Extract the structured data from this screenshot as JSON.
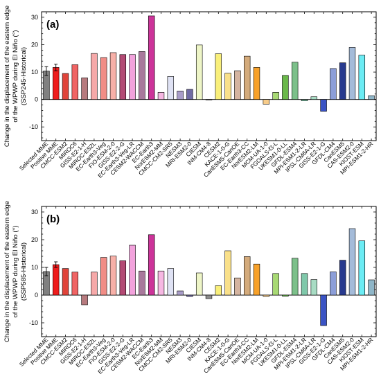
{
  "categories": [
    "Selected MME",
    "Positive MME",
    "CMCC-ESM2",
    "MIROC6",
    "GISS-E2-1-H",
    "MIROC-ES2L",
    "EC-Earth3-Veg",
    "FIO-ESM-2-0",
    "GISS-E2-2-G",
    "EC-Earth3-Veg-LR",
    "CESM2-WACCM",
    "EC-Earth3",
    "NorESM2-MM",
    "CMCC-CM2-SR5",
    "NESM3",
    "MRI-ESM2-0",
    "CIESM",
    "INM-CM4-8",
    "CESM2",
    "KACE-1-0-G",
    "CanESM5-CanOE",
    "EC-Earth3-CC",
    "NorESM2-LM",
    "MCM-UA-1-0",
    "FGOALS-f3-L",
    "UKESM1-0-LL",
    "GFDL-ESM4",
    "MPI-ESM1-2-LR",
    "IPSL-CM6A-LR",
    "GISS-E2-1-G",
    "GFDL-CM4",
    "CanESM5",
    "CAS-ESM2-0",
    "KIOST-ESM",
    "MPI-ESM1-2-HR"
  ],
  "colors": [
    "#808080",
    "#ee1c1c",
    "#e0443a",
    "#f06464",
    "#b77a7e",
    "#f6a9a9",
    "#f18d86",
    "#f7b0a8",
    "#b34a74",
    "#f2a2dc",
    "#a8799c",
    "#cc3399",
    "#f6b7e2",
    "#dfe2f4",
    "#a89cc8",
    "#6f6aa4",
    "#eef5c7",
    "#8c8c8c",
    "#f9ef7a",
    "#f9e08a",
    "#d4b4a0",
    "#d4ab7c",
    "#f7a12a",
    "#f7cc8a",
    "#a8d974",
    "#6ab84a",
    "#7cc08a",
    "#7fc8aa",
    "#a8dcc4",
    "#3a53c4",
    "#8c9ed8",
    "#283a8e",
    "#a4bbd9",
    "#6cecf4",
    "#8fb6c8"
  ],
  "chart_data": [
    {
      "type": "bar",
      "panel_label": "(a)",
      "ylabel_lines": [
        "Change in the displacement of the eastern edge",
        "of the WPWP during El Niño (°)",
        "(SSP245-Historical)"
      ],
      "ylim": [
        -15,
        32
      ],
      "yticks": [
        -10,
        0,
        10,
        20,
        30
      ],
      "values": [
        10.4,
        11.7,
        9.5,
        12.7,
        7.9,
        16.8,
        15.3,
        17.1,
        16.4,
        16.4,
        17.5,
        30.5,
        2.6,
        8.4,
        3.1,
        3.7,
        19.9,
        0.0,
        16.7,
        9.6,
        10.5,
        15.8,
        11.7,
        -1.7,
        2.6,
        8.8,
        13.6,
        -0.5,
        1.0,
        -4.3,
        11.3,
        13.4,
        19.0,
        16.2,
        1.4
      ],
      "errors": [
        1.6,
        1.2,
        null,
        null,
        null,
        null,
        null,
        null,
        null,
        null,
        null,
        null,
        null,
        null,
        null,
        null,
        null,
        null,
        null,
        null,
        null,
        null,
        null,
        null,
        null,
        null,
        null,
        null,
        null,
        null,
        null,
        null,
        null,
        null,
        null
      ]
    },
    {
      "type": "bar",
      "panel_label": "(b)",
      "ylabel_lines": [
        "Change in the displacement of the eastern edge",
        "of the WPWP during El Niño (°)",
        "(SSP585-Historical)"
      ],
      "ylim": [
        -15,
        32
      ],
      "yticks": [
        -10,
        0,
        10,
        20,
        30
      ],
      "values": [
        8.5,
        11.0,
        9.6,
        8.3,
        -3.5,
        8.3,
        13.6,
        14.1,
        12.4,
        18.0,
        8.7,
        21.8,
        8.7,
        9.6,
        1.5,
        -0.5,
        8.0,
        -1.3,
        3.4,
        16.0,
        6.2,
        13.9,
        11.2,
        -0.5,
        7.8,
        -0.4,
        13.3,
        7.8,
        5.6,
        -11.0,
        8.4,
        12.6,
        24.0,
        19.6,
        5.5
      ],
      "errors": [
        1.5,
        1.0,
        null,
        null,
        null,
        null,
        null,
        null,
        null,
        null,
        null,
        null,
        null,
        null,
        null,
        null,
        null,
        null,
        null,
        null,
        null,
        null,
        null,
        null,
        null,
        null,
        null,
        null,
        null,
        null,
        null,
        null,
        null,
        null,
        null
      ]
    }
  ]
}
